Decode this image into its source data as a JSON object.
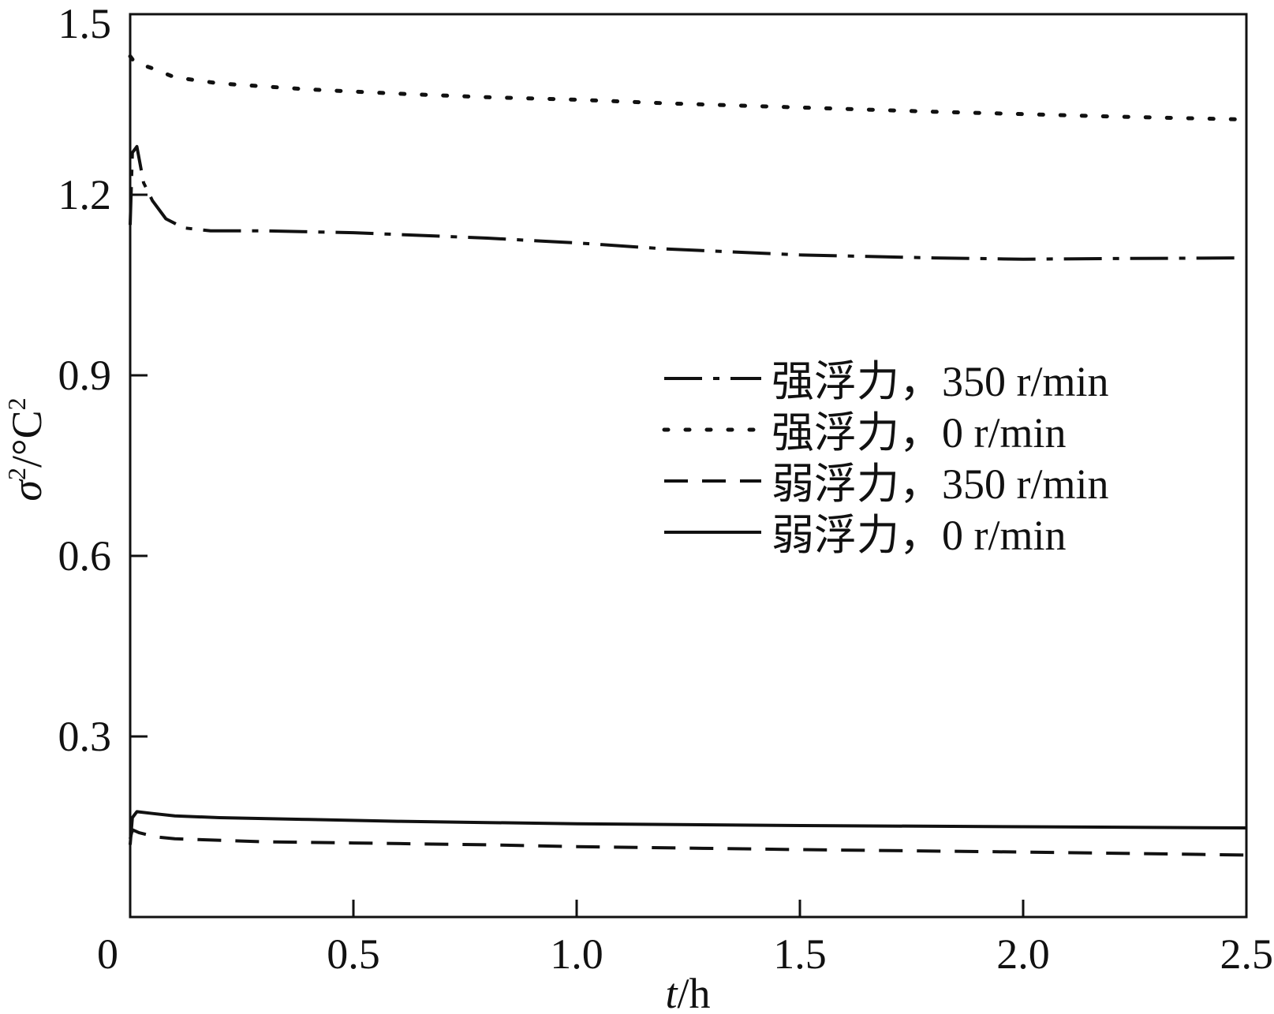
{
  "chart_data": {
    "type": "line",
    "title": "",
    "xlabel_var": "t",
    "xlabel_unit": "/h",
    "ylabel_var": "σ",
    "ylabel_sup": "2",
    "ylabel_unit": "/°C",
    "ylabel_unit_sup": "2",
    "xlim": [
      0,
      2.5
    ],
    "ylim": [
      0,
      1.5
    ],
    "x_ticks": [
      0,
      0.5,
      1.0,
      1.5,
      2.0,
      2.5
    ],
    "x_tick_labels": [
      "0",
      "0.5",
      "1.0",
      "1.5",
      "2.0",
      "2.5"
    ],
    "y_ticks": [
      0.3,
      0.6,
      0.9,
      1.2,
      1.5
    ],
    "y_tick_labels": [
      "0.3",
      "0.6",
      "0.9",
      "1.2",
      "1.5"
    ],
    "grid": false,
    "legend_position": "right-middle",
    "series": [
      {
        "name": "强浮力，350 r/min",
        "style": "dashdot",
        "points": [
          [
            0.0,
            1.15
          ],
          [
            0.005,
            1.27
          ],
          [
            0.015,
            1.28
          ],
          [
            0.03,
            1.22
          ],
          [
            0.05,
            1.19
          ],
          [
            0.08,
            1.16
          ],
          [
            0.12,
            1.145
          ],
          [
            0.18,
            1.14
          ],
          [
            0.3,
            1.14
          ],
          [
            0.5,
            1.137
          ],
          [
            0.8,
            1.128
          ],
          [
            1.0,
            1.12
          ],
          [
            1.2,
            1.11
          ],
          [
            1.5,
            1.1
          ],
          [
            1.8,
            1.095
          ],
          [
            2.0,
            1.093
          ],
          [
            2.2,
            1.094
          ],
          [
            2.5,
            1.095
          ]
        ]
      },
      {
        "name": "强浮力，0 r/min",
        "style": "dotted",
        "points": [
          [
            0.0,
            1.43
          ],
          [
            0.01,
            1.42
          ],
          [
            0.05,
            1.41
          ],
          [
            0.1,
            1.395
          ],
          [
            0.2,
            1.385
          ],
          [
            0.4,
            1.375
          ],
          [
            0.6,
            1.368
          ],
          [
            0.8,
            1.362
          ],
          [
            1.0,
            1.358
          ],
          [
            1.2,
            1.352
          ],
          [
            1.5,
            1.345
          ],
          [
            1.8,
            1.338
          ],
          [
            2.0,
            1.334
          ],
          [
            2.2,
            1.33
          ],
          [
            2.5,
            1.325
          ]
        ]
      },
      {
        "name": "弱浮力，350 r/min",
        "style": "dashed",
        "points": [
          [
            0.0,
            0.13
          ],
          [
            0.005,
            0.145
          ],
          [
            0.02,
            0.14
          ],
          [
            0.06,
            0.133
          ],
          [
            0.1,
            0.13
          ],
          [
            0.3,
            0.125
          ],
          [
            0.5,
            0.123
          ],
          [
            0.8,
            0.12
          ],
          [
            1.0,
            0.117
          ],
          [
            1.5,
            0.112
          ],
          [
            2.0,
            0.108
          ],
          [
            2.5,
            0.103
          ]
        ]
      },
      {
        "name": "弱浮力，0 r/min",
        "style": "solid",
        "points": [
          [
            0.0,
            0.12
          ],
          [
            0.005,
            0.165
          ],
          [
            0.015,
            0.175
          ],
          [
            0.05,
            0.172
          ],
          [
            0.1,
            0.168
          ],
          [
            0.2,
            0.165
          ],
          [
            0.4,
            0.162
          ],
          [
            0.6,
            0.159
          ],
          [
            0.8,
            0.157
          ],
          [
            1.0,
            0.155
          ],
          [
            1.5,
            0.152
          ],
          [
            2.0,
            0.15
          ],
          [
            2.5,
            0.148
          ]
        ]
      }
    ]
  }
}
